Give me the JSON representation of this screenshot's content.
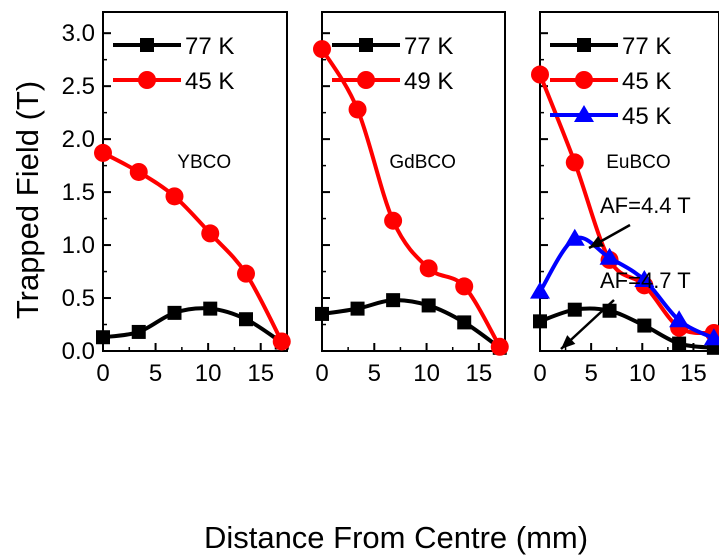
{
  "chart_data": [
    {
      "type": "line",
      "panel_label": "YBCO",
      "xlim": [
        0,
        17.5
      ],
      "ylim": [
        0,
        3.2
      ],
      "x_ticks": [
        "0",
        "5",
        "10",
        "15"
      ],
      "y_ticks": [
        "0.0",
        "0.5",
        "1.0",
        "1.5",
        "2.0",
        "2.5",
        "3.0"
      ],
      "series": [
        {
          "name": "77 K",
          "color": "#000000",
          "marker": "square",
          "x": [
            0,
            3.4,
            6.8,
            10.2,
            13.6,
            17
          ],
          "y": [
            0.13,
            0.18,
            0.36,
            0.4,
            0.3,
            0.08
          ]
        },
        {
          "name": "45 K",
          "color": "#ff0000",
          "marker": "circle",
          "x": [
            0,
            3.4,
            6.8,
            10.2,
            13.6,
            17
          ],
          "y": [
            1.87,
            1.69,
            1.46,
            1.11,
            0.73,
            0.09
          ]
        }
      ]
    },
    {
      "type": "line",
      "panel_label": "GdBCO",
      "xlim": [
        0,
        17.5
      ],
      "ylim": [
        0,
        3.2
      ],
      "x_ticks": [
        "0",
        "5",
        "10",
        "15"
      ],
      "series": [
        {
          "name": "77 K",
          "color": "#000000",
          "marker": "square",
          "x": [
            0,
            3.4,
            6.8,
            10.2,
            13.6,
            17
          ],
          "y": [
            0.35,
            0.4,
            0.48,
            0.43,
            0.27,
            0.03
          ]
        },
        {
          "name": "49 K",
          "color": "#ff0000",
          "marker": "circle",
          "x": [
            0,
            3.4,
            6.8,
            10.2,
            13.6,
            17
          ],
          "y": [
            2.85,
            2.28,
            1.23,
            0.78,
            0.61,
            0.04
          ]
        }
      ]
    },
    {
      "type": "line",
      "panel_label": "EuBCO",
      "xlim": [
        0,
        17.5
      ],
      "ylim": [
        0,
        3.2
      ],
      "x_ticks": [
        "0",
        "5",
        "10",
        "15"
      ],
      "annotations": [
        "AF=4.4 T",
        "AF=4.7 T"
      ],
      "series": [
        {
          "name": "77 K",
          "color": "#000000",
          "marker": "square",
          "x": [
            0,
            3.4,
            6.8,
            10.2,
            13.6,
            17
          ],
          "y": [
            0.28,
            0.39,
            0.38,
            0.24,
            0.07,
            0.03
          ]
        },
        {
          "name": "45 K",
          "color": "#ff0000",
          "marker": "circle",
          "x": [
            0,
            3.4,
            6.8,
            10.2,
            13.6,
            17
          ],
          "y": [
            2.61,
            1.78,
            0.86,
            0.62,
            0.22,
            0.17
          ]
        },
        {
          "name": "45 K",
          "color": "#0000ff",
          "marker": "triangle",
          "x": [
            0,
            3.4,
            6.8,
            10.2,
            13.6,
            17
          ],
          "y": [
            0.56,
            1.06,
            0.88,
            0.67,
            0.29,
            0.12
          ]
        }
      ]
    }
  ],
  "ylabel": "Trapped Field (T)",
  "xlabel": "Distance From Centre (mm)"
}
